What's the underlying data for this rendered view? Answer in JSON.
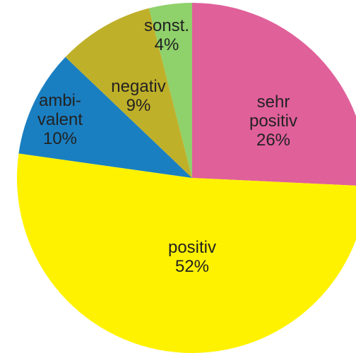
{
  "chart_data": {
    "type": "pie",
    "categories": [
      "sehr\npositiv",
      "positiv",
      "ambi-\nvalent",
      "negativ",
      "sonst."
    ],
    "values": [
      26,
      52,
      10,
      9,
      4
    ],
    "value_labels": [
      "26%",
      "52%",
      "10%",
      "9%",
      "4%"
    ],
    "colors": [
      "#e0609a",
      "#fff200",
      "#1a7fc1",
      "#bfb02a",
      "#8fd16a"
    ]
  }
}
